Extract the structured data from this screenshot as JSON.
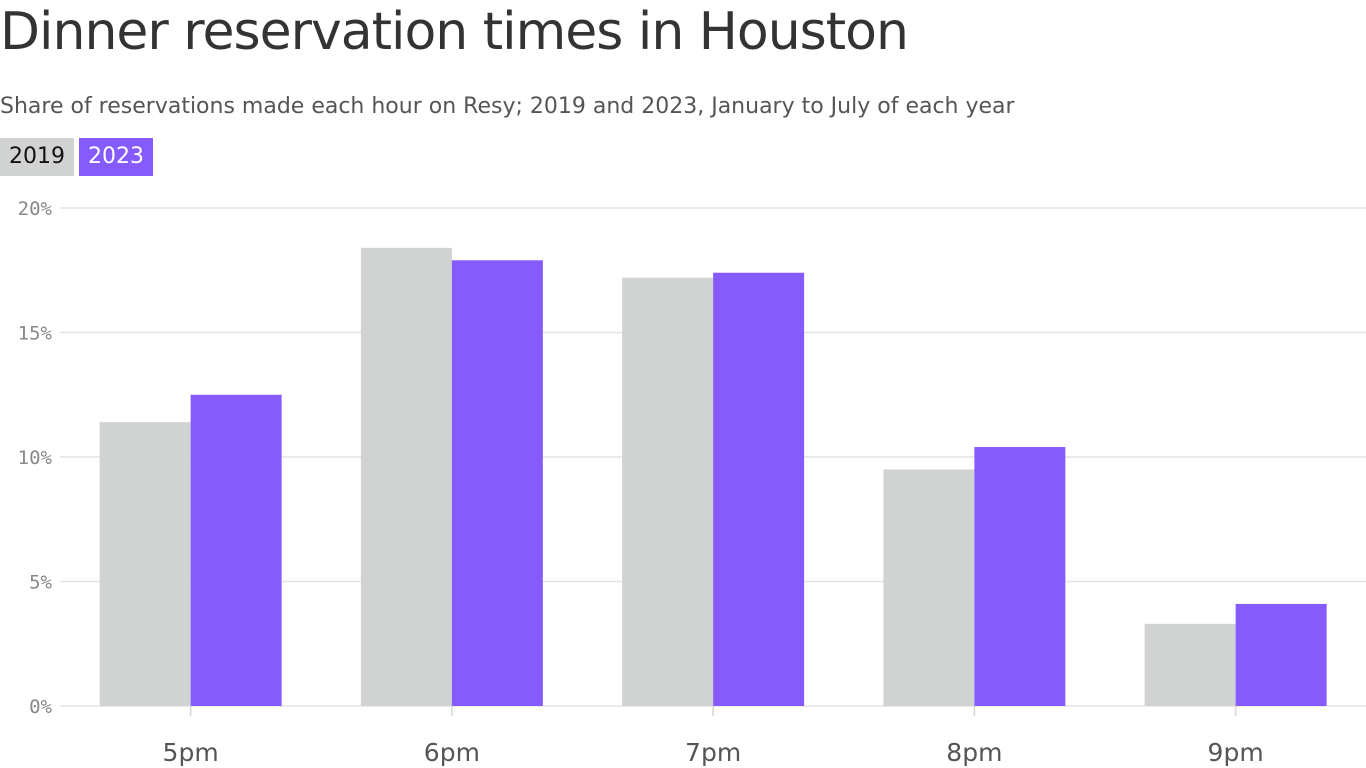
{
  "title": "Dinner reservation times in Houston",
  "subtitle": "Share of reservations made each hour on Resy; 2019 and 2023, January to July of each year",
  "legend": {
    "series_2019": "2019",
    "series_2023": "2023"
  },
  "colors": {
    "series_2019": "#d1d3d2",
    "series_2023": "#865bfd",
    "grid": "#e3e3e3"
  },
  "chart_data": {
    "type": "bar",
    "title": "Dinner reservation times in Houston",
    "subtitle": "Share of reservations made each hour on Resy; 2019 and 2023, January to July of each year",
    "categories": [
      "5pm",
      "6pm",
      "7pm",
      "8pm",
      "9pm"
    ],
    "series": [
      {
        "name": "2019",
        "values": [
          11.4,
          18.4,
          17.2,
          9.5,
          3.3
        ]
      },
      {
        "name": "2023",
        "values": [
          12.5,
          17.9,
          17.4,
          10.4,
          4.1
        ]
      }
    ],
    "ylim": [
      0,
      20
    ],
    "yticks": [
      0,
      5,
      10,
      15,
      20
    ],
    "ytick_labels": [
      "0%",
      "5%",
      "10%",
      "15%",
      "20%"
    ],
    "xlabel": "",
    "ylabel": "",
    "grid": true,
    "legend_position": "top-left"
  }
}
